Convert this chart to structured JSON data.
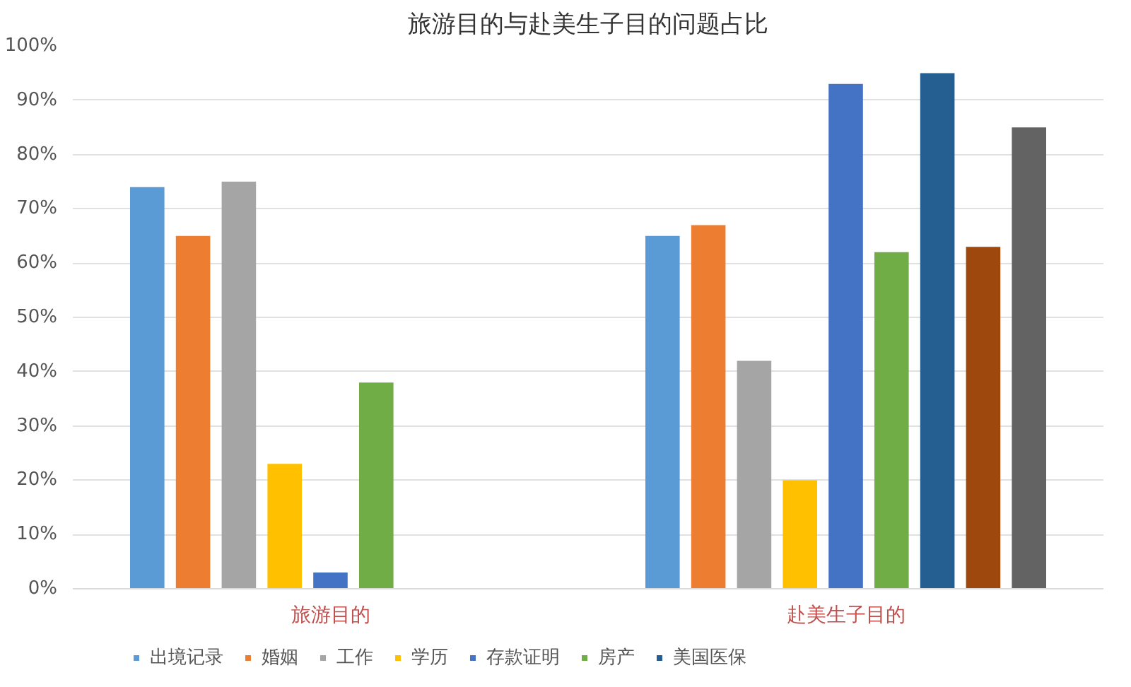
{
  "chart_data": {
    "type": "bar",
    "title": "旅游目的与赴美生子目的问题占比",
    "categories": [
      "旅游目的",
      "赴美生子目的"
    ],
    "series": [
      {
        "name": "出境记录",
        "color": "#5b9bd5",
        "values": [
          74,
          65
        ]
      },
      {
        "name": "婚姻",
        "color": "#ed7d31",
        "values": [
          65,
          67
        ]
      },
      {
        "name": "工作",
        "color": "#a5a5a5",
        "values": [
          75,
          42
        ]
      },
      {
        "name": "学历",
        "color": "#ffc000",
        "values": [
          23,
          20
        ]
      },
      {
        "name": "存款证明",
        "color": "#4472c4",
        "values": [
          3,
          93
        ]
      },
      {
        "name": "房产",
        "color": "#70ad47",
        "values": [
          38,
          62
        ]
      },
      {
        "name": "美国医保",
        "color": "#255e91",
        "values": [
          null,
          95
        ]
      },
      {
        "color": "#9e480e",
        "values": [
          null,
          63
        ]
      },
      {
        "color": "#636363",
        "values": [
          null,
          85
        ]
      }
    ],
    "ylim": [
      0,
      100
    ],
    "yticks": [
      {
        "value": 0,
        "label": "0%"
      },
      {
        "value": 10,
        "label": "10%"
      },
      {
        "value": 20,
        "label": "20%"
      },
      {
        "value": 30,
        "label": "30%"
      },
      {
        "value": 40,
        "label": "40%"
      },
      {
        "value": 50,
        "label": "50%"
      },
      {
        "value": 60,
        "label": "60%"
      },
      {
        "value": 70,
        "label": "70%"
      },
      {
        "value": 80,
        "label": "80%"
      },
      {
        "value": 90,
        "label": "90%"
      },
      {
        "value": 100,
        "label": "100%"
      }
    ],
    "grid": "y",
    "legend": "bottom"
  }
}
